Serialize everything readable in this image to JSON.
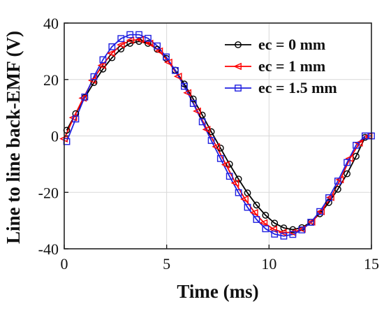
{
  "chart_data": {
    "type": "line",
    "title": "",
    "xlabel": "Time (ms)",
    "ylabel": "Line to line back-EMF (V)",
    "xlim": [
      0,
      15
    ],
    "ylim": [
      -40,
      40
    ],
    "xticks": [
      0,
      5,
      10,
      15
    ],
    "yticks": [
      -40,
      -20,
      0,
      20,
      40
    ],
    "grid": true,
    "legend_position": "top-right",
    "series": [
      {
        "name": "ec = 0 mm",
        "color": "#000000",
        "marker": "circle",
        "x": [
          0.12,
          0.56,
          1.0,
          1.45,
          1.89,
          2.33,
          2.77,
          3.21,
          3.65,
          4.09,
          4.54,
          4.98,
          5.42,
          5.86,
          6.3,
          6.74,
          7.18,
          7.63,
          8.07,
          8.51,
          8.95,
          9.39,
          9.83,
          10.27,
          10.72,
          11.16,
          11.6,
          12.04,
          12.48,
          12.92,
          13.36,
          13.81,
          14.25,
          14.69
        ],
        "y": [
          2.0,
          7.9,
          13.6,
          18.9,
          23.7,
          27.7,
          30.8,
          32.8,
          33.5,
          32.8,
          30.7,
          27.5,
          23.3,
          18.4,
          13.1,
          7.4,
          1.5,
          -4.3,
          -10.0,
          -15.3,
          -20.2,
          -24.5,
          -28.1,
          -30.9,
          -32.6,
          -33.2,
          -32.5,
          -30.6,
          -27.6,
          -23.6,
          -18.9,
          -13.4,
          -7.2,
          -0.5
        ]
      },
      {
        "name": "ec = 1 mm",
        "color": "#ff0000",
        "marker": "triangle-left",
        "x": [
          0.0,
          0.46,
          0.93,
          1.39,
          1.86,
          2.32,
          2.79,
          3.25,
          3.72,
          4.18,
          4.65,
          5.11,
          5.58,
          6.04,
          6.51,
          6.97,
          7.44,
          7.9,
          8.37,
          8.83,
          9.3,
          9.76,
          10.23,
          10.69,
          11.16,
          11.62,
          12.09,
          12.55,
          13.02,
          13.48,
          13.95,
          14.41,
          14.88
        ],
        "y": [
          -1.0,
          6.5,
          13.4,
          19.7,
          25.0,
          29.3,
          32.3,
          33.9,
          34.1,
          32.8,
          30.1,
          26.1,
          21.1,
          15.3,
          8.8,
          2.3,
          -3.8,
          -10.2,
          -16.7,
          -22.4,
          -27.2,
          -30.8,
          -33.1,
          -34.2,
          -34.2,
          -33.0,
          -30.5,
          -26.8,
          -21.8,
          -15.5,
          -8.0,
          -2.5,
          0.0
        ]
      },
      {
        "name": "ec = 1.5 mm",
        "color": "#2020e0",
        "marker": "square",
        "x": [
          0.12,
          0.56,
          1.0,
          1.45,
          1.89,
          2.33,
          2.77,
          3.21,
          3.65,
          4.09,
          4.54,
          4.98,
          5.42,
          5.86,
          6.3,
          6.74,
          7.18,
          7.63,
          8.07,
          8.51,
          8.95,
          9.39,
          9.83,
          10.27,
          10.72,
          11.16,
          11.6,
          12.04,
          12.48,
          12.92,
          13.36,
          13.81,
          14.25,
          14.69,
          15.0
        ],
        "y": [
          -2.0,
          6.0,
          13.8,
          21.0,
          27.0,
          31.6,
          34.5,
          35.9,
          35.9,
          34.6,
          31.9,
          28.0,
          23.2,
          17.6,
          11.5,
          5.0,
          -1.6,
          -8.0,
          -14.3,
          -20.1,
          -25.3,
          -29.6,
          -32.9,
          -34.8,
          -35.5,
          -34.9,
          -33.3,
          -30.6,
          -26.8,
          -21.9,
          -16.0,
          -9.4,
          -3.3,
          0.0,
          0.0
        ]
      }
    ]
  }
}
